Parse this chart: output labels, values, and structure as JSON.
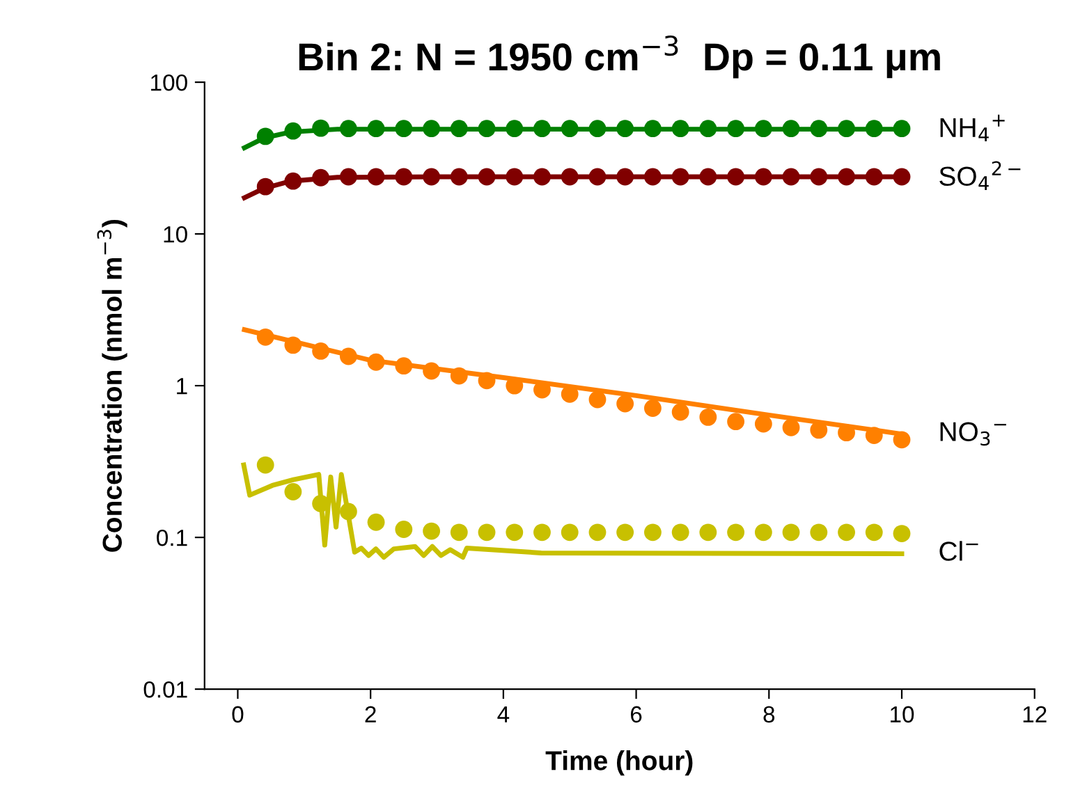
{
  "chart_data": {
    "type": "line",
    "title": "Bin 2: N = 1950 cm$^{−3}$  Dp = 0.11 μm",
    "xlabel": "Time (hour)",
    "ylabel": "Concentration (nmol m$^{−3}$)",
    "log": "y",
    "xlim": [
      -0.5,
      12
    ],
    "ylim": [
      0.01,
      100
    ],
    "xticks": [
      0,
      2,
      4,
      6,
      8,
      10,
      12
    ],
    "yticks": [
      0.01,
      0.1,
      1,
      10,
      100
    ],
    "grid": false,
    "series": [
      {
        "name": "NH$_{4}$$^{+}$",
        "color": "#008000",
        "marker": "none",
        "x": [
          0.1,
          0.4,
          0.8,
          1.5,
          3,
          10
        ],
        "values": [
          37,
          43,
          47,
          49,
          49,
          49
        ]
      },
      {
        "color": "#008000",
        "type": "scatter",
        "marker": "circle",
        "x": [
          0.417,
          0.833,
          1.25,
          1.667,
          2.083,
          2.5,
          2.917,
          3.333,
          3.75,
          4.167,
          4.583,
          5.0,
          5.417,
          5.833,
          6.25,
          6.667,
          7.083,
          7.5,
          7.917,
          8.333,
          8.75,
          9.167,
          9.583,
          10.0
        ],
        "values": [
          44,
          47.7,
          49.8,
          49.5,
          49.5,
          49.5,
          49.5,
          49.5,
          49.5,
          49.5,
          49.5,
          49.5,
          49.5,
          49.5,
          49.5,
          49.5,
          49.5,
          49.5,
          49.5,
          49.5,
          49.5,
          49.5,
          49.5,
          49.5
        ]
      },
      {
        "name": "SO$_{4}$$^{2−}$",
        "color": "#800000",
        "marker": "none",
        "x": [
          0.1,
          0.4,
          0.8,
          1.5,
          3,
          10
        ],
        "values": [
          17.3,
          20,
          22.3,
          23.6,
          23.8,
          23.8
        ]
      },
      {
        "color": "#800000",
        "type": "scatter",
        "marker": "circle",
        "x": [
          0.417,
          0.833,
          1.25,
          1.667,
          2.083,
          2.5,
          2.917,
          3.333,
          3.75,
          4.167,
          4.583,
          5.0,
          5.417,
          5.833,
          6.25,
          6.667,
          7.083,
          7.5,
          7.917,
          8.333,
          8.75,
          9.167,
          9.583,
          10.0
        ],
        "values": [
          20.5,
          22.3,
          23.5,
          23.8,
          23.8,
          23.8,
          23.8,
          23.8,
          23.8,
          23.8,
          23.8,
          23.8,
          23.8,
          23.8,
          23.8,
          23.8,
          23.8,
          23.8,
          23.8,
          23.8,
          23.8,
          23.8,
          23.8,
          23.8
        ]
      },
      {
        "name": "NO$_{3}$$^{−}$",
        "color": "#ff8000",
        "marker": "none",
        "x": [
          0.1,
          2,
          4,
          6,
          8,
          10
        ],
        "values": [
          2.34,
          1.47,
          1.13,
          0.86,
          0.64,
          0.48
        ]
      },
      {
        "color": "#ff8000",
        "type": "scatter",
        "marker": "circle",
        "x": [
          0.417,
          0.833,
          1.25,
          1.667,
          2.083,
          2.5,
          2.917,
          3.333,
          3.75,
          4.167,
          4.583,
          5.0,
          5.417,
          5.833,
          6.25,
          6.667,
          7.083,
          7.5,
          7.917,
          8.333,
          8.75,
          9.167,
          9.583,
          10.0
        ],
        "values": [
          2.09,
          1.85,
          1.69,
          1.56,
          1.43,
          1.35,
          1.25,
          1.16,
          1.08,
          1.0,
          0.94,
          0.88,
          0.81,
          0.76,
          0.71,
          0.67,
          0.62,
          0.58,
          0.56,
          0.53,
          0.51,
          0.49,
          0.47,
          0.44
        ]
      },
      {
        "name": "Cl$^{−}$",
        "color": "#c8c000",
        "marker": "none",
        "x": [
          0.09,
          0.18,
          0.52,
          0.84,
          1.22,
          1.31,
          1.4,
          1.48,
          1.56,
          1.76,
          1.86,
          1.97,
          2.08,
          2.2,
          2.35,
          2.67,
          2.8,
          2.93,
          3.06,
          3.2,
          3.39,
          3.45,
          4.57,
          10
        ],
        "values": [
          0.3,
          0.19,
          0.22,
          0.24,
          0.26,
          0.089,
          0.25,
          0.117,
          0.26,
          0.08,
          0.085,
          0.076,
          0.084,
          0.074,
          0.084,
          0.087,
          0.076,
          0.087,
          0.076,
          0.083,
          0.074,
          0.085,
          0.079,
          0.078
        ]
      },
      {
        "color": "#c8c000",
        "type": "scatter",
        "marker": "circle",
        "x": [
          0.417,
          0.833,
          1.25,
          1.667,
          2.083,
          2.5,
          2.917,
          3.333,
          3.75,
          4.167,
          4.583,
          5.0,
          5.417,
          5.833,
          6.25,
          6.667,
          7.083,
          7.5,
          7.917,
          8.333,
          8.75,
          9.167,
          9.583,
          10.0
        ],
        "values": [
          0.3,
          0.2,
          0.167,
          0.148,
          0.126,
          0.113,
          0.11,
          0.108,
          0.108,
          0.108,
          0.108,
          0.108,
          0.108,
          0.108,
          0.108,
          0.108,
          0.108,
          0.108,
          0.108,
          0.108,
          0.108,
          0.108,
          0.108,
          0.106
        ]
      }
    ]
  }
}
